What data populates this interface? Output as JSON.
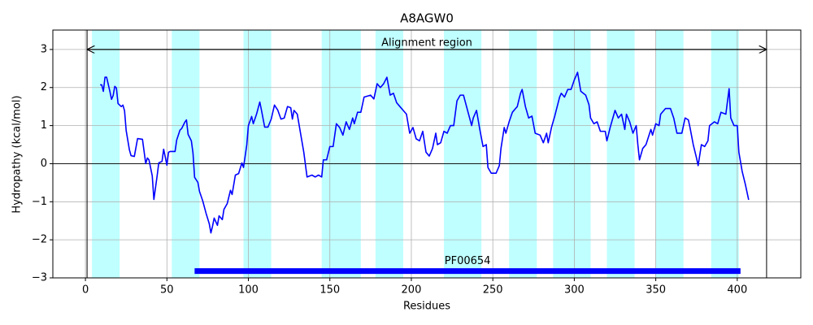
{
  "chart_data": {
    "type": "line",
    "title": "A8AGW0",
    "x_label": "Residues",
    "y_label": "Hydropathy (kcal/mol)",
    "xlim": [
      -20,
      439
    ],
    "ylim": [
      -3,
      3.51
    ],
    "xticks": [
      0,
      50,
      100,
      150,
      200,
      250,
      300,
      350,
      400
    ],
    "yticks": [
      {
        "value": -3,
        "label": "−3"
      },
      {
        "value": -2,
        "label": "−2"
      },
      {
        "value": -1,
        "label": "−1"
      },
      0,
      1,
      2,
      3
    ],
    "grid": true,
    "hline": 0,
    "vlines": [
      1,
      418
    ],
    "region_color": "#bfffff",
    "regions": [
      [
        4,
        21
      ],
      [
        53,
        70
      ],
      [
        97,
        114
      ],
      [
        145,
        169
      ],
      [
        178,
        195
      ],
      [
        220,
        243
      ],
      [
        260,
        277
      ],
      [
        287,
        310
      ],
      [
        320,
        337
      ],
      [
        350,
        367
      ],
      [
        384,
        401
      ]
    ],
    "alignment": {
      "label": "Alignment region",
      "start": 1,
      "end": 418,
      "y": 3
    },
    "domain": {
      "label": "PF00654",
      "start": 67,
      "end": 402,
      "y": -2.82,
      "color": "#0000ff"
    },
    "x": [
      9,
      10,
      11,
      12,
      13,
      15,
      16,
      17,
      18,
      19,
      20,
      22,
      23,
      24,
      25,
      27,
      28,
      30,
      32,
      35,
      37,
      38,
      39,
      41,
      42,
      44,
      45,
      47,
      48,
      50,
      51,
      52,
      55,
      56,
      58,
      59,
      61,
      62,
      63,
      65,
      66,
      67,
      69,
      70,
      72,
      74,
      76,
      77,
      78,
      79,
      81,
      82,
      84,
      85,
      87,
      89,
      90,
      92,
      94,
      96,
      97,
      99,
      100,
      102,
      103,
      105,
      107,
      108,
      110,
      112,
      114,
      116,
      118,
      120,
      122,
      124,
      126,
      127,
      128,
      130,
      132,
      134,
      136,
      139,
      141,
      143,
      145,
      146,
      148,
      150,
      152,
      154,
      156,
      158,
      160,
      162,
      164,
      165,
      167,
      169,
      171,
      175,
      177,
      179,
      181,
      183,
      185,
      187,
      189,
      191,
      193,
      195,
      197,
      199,
      201,
      203,
      205,
      207,
      209,
      211,
      213,
      215,
      216,
      218,
      220,
      222,
      224,
      226,
      228,
      230,
      232,
      237,
      238,
      240,
      242,
      244,
      246,
      247,
      249,
      252,
      254,
      255,
      257,
      258,
      260,
      262,
      265,
      267,
      268,
      270,
      272,
      274,
      276,
      279,
      281,
      283,
      284,
      286,
      288,
      291,
      292,
      294,
      296,
      298,
      300,
      302,
      304,
      307,
      309,
      310,
      312,
      314,
      316,
      319,
      320,
      322,
      325,
      327,
      329,
      331,
      332,
      334,
      336,
      338,
      339,
      340,
      342,
      344,
      347,
      348,
      350,
      352,
      353,
      356,
      359,
      361,
      363,
      366,
      368,
      370,
      371,
      373,
      375,
      376,
      378,
      380,
      382,
      383,
      386,
      388,
      390,
      393,
      395,
      396,
      398,
      400,
      401,
      403,
      405,
      407
    ],
    "series": [
      {
        "color": "#0000ff",
        "values": [
          2.07,
          2.07,
          1.9,
          2.27,
          2.27,
          1.9,
          1.69,
          1.79,
          2.03,
          1.99,
          1.58,
          1.5,
          1.54,
          1.39,
          0.87,
          0.36,
          0.21,
          0.19,
          0.66,
          0.64,
          0,
          0.15,
          0.1,
          -0.32,
          -0.94,
          -0.32,
          0.02,
          0.06,
          0.38,
          -0.04,
          0.3,
          0.32,
          0.32,
          0.62,
          0.88,
          0.92,
          1.09,
          1.15,
          0.77,
          0.6,
          0.28,
          -0.36,
          -0.49,
          -0.73,
          -0.98,
          -1.3,
          -1.58,
          -1.82,
          -1.64,
          -1.43,
          -1.62,
          -1.37,
          -1.47,
          -1.2,
          -1.05,
          -0.7,
          -0.81,
          -0.3,
          -0.26,
          0.02,
          -0.1,
          0.49,
          1.0,
          1.24,
          1.05,
          1.3,
          1.62,
          1.41,
          0.96,
          0.96,
          1.17,
          1.54,
          1.41,
          1.17,
          1.2,
          1.5,
          1.47,
          1.17,
          1.4,
          1.3,
          0.8,
          0.3,
          -0.35,
          -0.3,
          -0.35,
          -0.3,
          -0.35,
          0.1,
          0.1,
          0.45,
          0.45,
          1.05,
          0.95,
          0.75,
          1.1,
          0.9,
          1.2,
          1.05,
          1.35,
          1.35,
          1.75,
          1.8,
          1.7,
          2.1,
          2.0,
          2.1,
          2.27,
          1.8,
          1.85,
          1.6,
          1.5,
          1.4,
          1.3,
          0.8,
          0.95,
          0.65,
          0.6,
          0.85,
          0.3,
          0.2,
          0.4,
          0.8,
          0.5,
          0.55,
          0.85,
          0.8,
          1.0,
          1.0,
          1.65,
          1.8,
          1.8,
          1.0,
          1.2,
          1.4,
          0.9,
          0.45,
          0.5,
          -0.1,
          -0.25,
          -0.25,
          -0.05,
          0.4,
          0.95,
          0.8,
          1.1,
          1.35,
          1.5,
          1.85,
          1.95,
          1.5,
          1.2,
          1.25,
          0.8,
          0.75,
          0.55,
          0.8,
          0.55,
          0.95,
          1.25,
          1.75,
          1.85,
          1.75,
          1.95,
          1.95,
          2.2,
          2.4,
          1.9,
          1.8,
          1.55,
          1.2,
          1.05,
          1.1,
          0.85,
          0.85,
          0.6,
          0.95,
          1.4,
          1.2,
          1.3,
          0.9,
          1.3,
          1.1,
          0.8,
          1.0,
          0.5,
          0.1,
          0.4,
          0.5,
          0.9,
          0.75,
          1.05,
          1.0,
          1.3,
          1.45,
          1.45,
          1.2,
          0.8,
          0.8,
          1.2,
          1.15,
          0.95,
          0.5,
          0.15,
          -0.05,
          0.5,
          0.45,
          0.6,
          1.0,
          1.1,
          1.05,
          1.35,
          1.3,
          1.97,
          1.2,
          1.0,
          1.0,
          0.3,
          -0.2,
          -0.55,
          -0.95
        ]
      }
    ]
  }
}
